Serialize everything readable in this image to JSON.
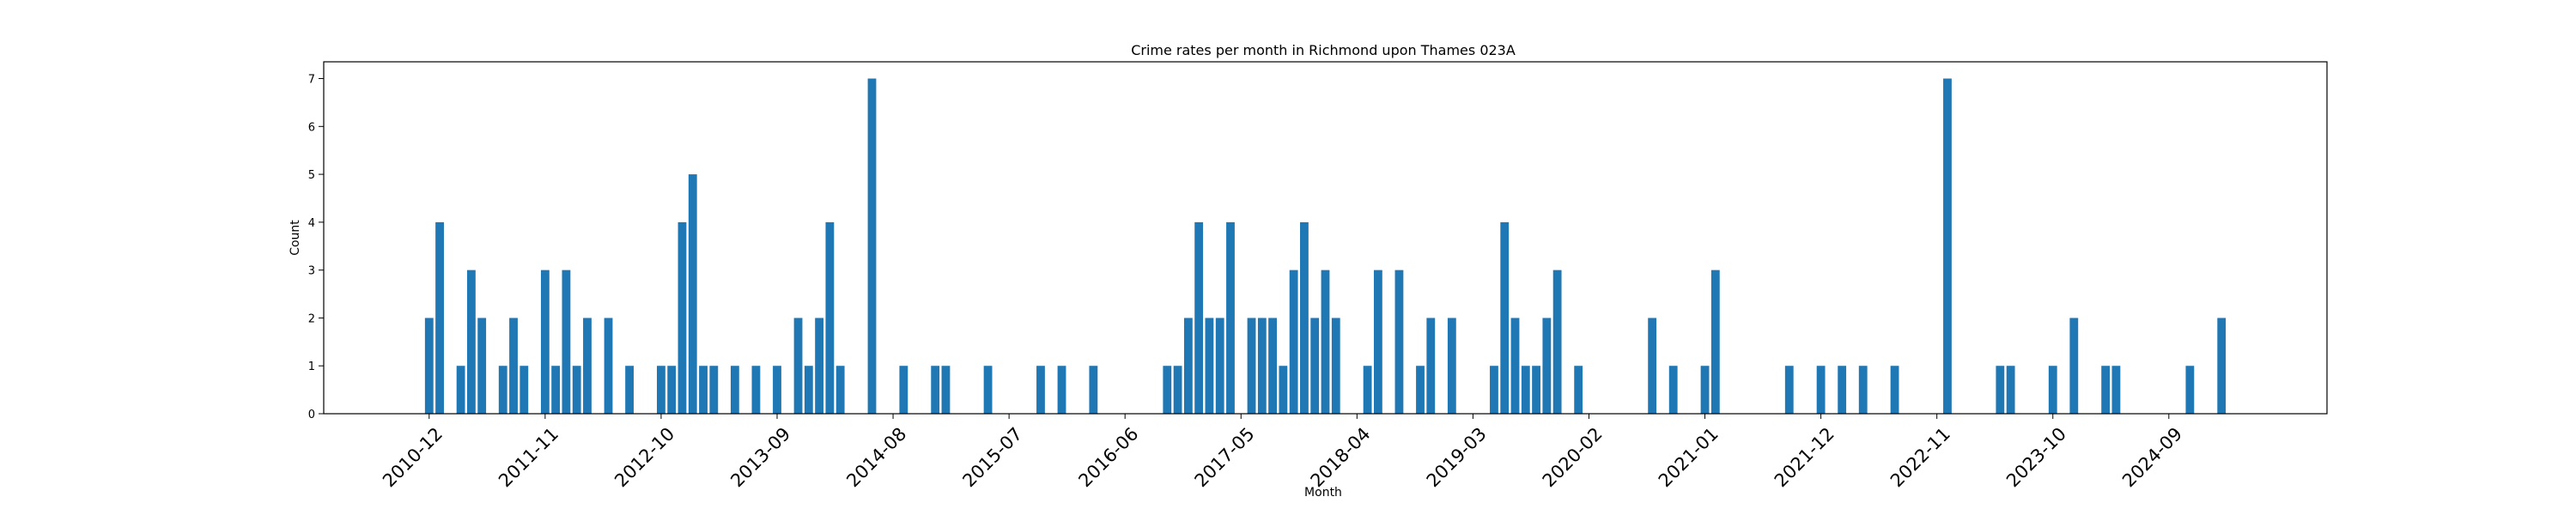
{
  "chart_data": {
    "type": "bar",
    "title": "Crime rates per month in Richmond upon Thames 023A",
    "xlabel": "Month",
    "ylabel": "Count",
    "ylim": [
      0,
      7.35
    ],
    "yticks": [
      0,
      1,
      2,
      3,
      4,
      5,
      6,
      7
    ],
    "grid": false,
    "bar_color": "#1f77b4",
    "xticks": [
      "2010-12",
      "2011-11",
      "2012-10",
      "2013-09",
      "2014-08",
      "2015-07",
      "2016-06",
      "2017-05",
      "2018-04",
      "2019-03",
      "2020-02",
      "2021-01",
      "2021-12",
      "2022-11",
      "2023-10",
      "2024-09"
    ],
    "categories": [
      "2010-12",
      "2011-01",
      "2011-03",
      "2011-04",
      "2011-05",
      "2011-07",
      "2011-08",
      "2011-09",
      "2011-11",
      "2011-12",
      "2012-01",
      "2012-02",
      "2012-03",
      "2012-05",
      "2012-07",
      "2012-10",
      "2012-11",
      "2012-12",
      "2013-01",
      "2013-02",
      "2013-03",
      "2013-05",
      "2013-07",
      "2013-09",
      "2013-11",
      "2013-12",
      "2014-01",
      "2014-02",
      "2014-03",
      "2014-06",
      "2014-09",
      "2014-12",
      "2015-01",
      "2015-05",
      "2015-10",
      "2015-12",
      "2016-03",
      "2016-10",
      "2016-11",
      "2016-12",
      "2017-01",
      "2017-02",
      "2017-03",
      "2017-04",
      "2017-06",
      "2017-07",
      "2017-08",
      "2017-09",
      "2017-10",
      "2017-11",
      "2017-12",
      "2018-01",
      "2018-02",
      "2018-05",
      "2018-06",
      "2018-08",
      "2018-10",
      "2018-11",
      "2019-01",
      "2019-05",
      "2019-06",
      "2019-07",
      "2019-08",
      "2019-09",
      "2019-10",
      "2019-11",
      "2020-01",
      "2020-08",
      "2020-10",
      "2021-01",
      "2021-02",
      "2021-09",
      "2021-12",
      "2022-02",
      "2022-04",
      "2022-07",
      "2022-12",
      "2023-05",
      "2023-06",
      "2023-10",
      "2023-12",
      "2024-03",
      "2024-04",
      "2024-11",
      "2025-02"
    ],
    "values": [
      2,
      4,
      1,
      3,
      2,
      1,
      2,
      1,
      3,
      1,
      3,
      1,
      2,
      2,
      1,
      1,
      1,
      4,
      5,
      1,
      1,
      1,
      1,
      1,
      2,
      1,
      2,
      4,
      1,
      7,
      1,
      1,
      1,
      1,
      1,
      1,
      1,
      1,
      1,
      2,
      4,
      2,
      2,
      4,
      2,
      2,
      2,
      1,
      3,
      4,
      2,
      3,
      2,
      1,
      3,
      3,
      1,
      2,
      2,
      1,
      4,
      2,
      1,
      1,
      2,
      3,
      1,
      2,
      1,
      1,
      3,
      1,
      1,
      1,
      1,
      1,
      7,
      1,
      1,
      1,
      2,
      1,
      1,
      1,
      2
    ],
    "x_start": "2010-02",
    "x_end": "2025-12"
  }
}
